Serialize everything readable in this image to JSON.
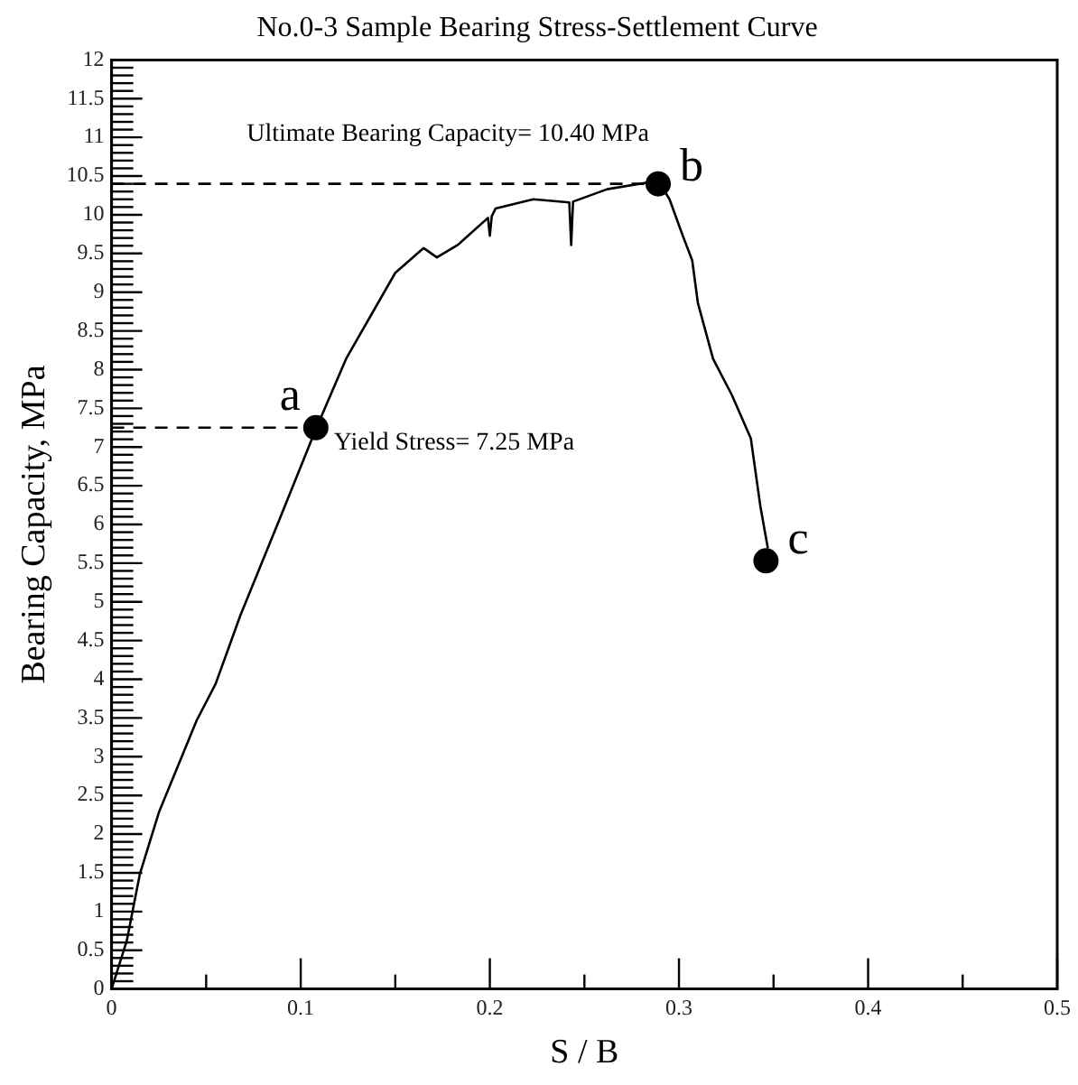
{
  "chart_data": {
    "type": "line",
    "title": "No.0-3 Sample Bearing Stress-Settlement Curve",
    "xlabel": "S / B",
    "ylabel": "Bearing Capacity, MPa",
    "xlim": [
      0,
      0.5
    ],
    "ylim": [
      0,
      12
    ],
    "xticks": [
      0,
      {
        "value": 0.05,
        "label": null
      },
      0.1,
      {
        "value": 0.15,
        "label": null
      },
      0.2,
      {
        "value": 0.25,
        "label": null
      },
      0.3,
      {
        "value": 0.35,
        "label": null
      },
      0.4,
      {
        "value": 0.45,
        "label": null
      },
      0.5
    ],
    "yticks": [
      0,
      {
        "value": 0.1,
        "label": null
      },
      {
        "value": 0.2,
        "label": null
      },
      {
        "value": 0.3,
        "label": null
      },
      {
        "value": 0.4,
        "label": null
      },
      0.5,
      {
        "value": 0.6,
        "label": null
      },
      {
        "value": 0.7,
        "label": null
      },
      {
        "value": 0.8,
        "label": null
      },
      {
        "value": 0.9,
        "label": null
      },
      1,
      {
        "value": 1.1,
        "label": null
      },
      {
        "value": 1.2,
        "label": null
      },
      {
        "value": 1.3,
        "label": null
      },
      {
        "value": 1.4,
        "label": null
      },
      1.5,
      {
        "value": 1.6,
        "label": null
      },
      {
        "value": 1.7,
        "label": null
      },
      {
        "value": 1.8,
        "label": null
      },
      {
        "value": 1.9,
        "label": null
      },
      2,
      {
        "value": 2.1,
        "label": null
      },
      {
        "value": 2.2,
        "label": null
      },
      {
        "value": 2.3,
        "label": null
      },
      {
        "value": 2.4,
        "label": null
      },
      2.5,
      {
        "value": 2.6,
        "label": null
      },
      {
        "value": 2.7,
        "label": null
      },
      {
        "value": 2.8,
        "label": null
      },
      {
        "value": 2.9,
        "label": null
      },
      3,
      {
        "value": 3.1,
        "label": null
      },
      {
        "value": 3.2,
        "label": null
      },
      {
        "value": 3.3,
        "label": null
      },
      {
        "value": 3.4,
        "label": null
      },
      3.5,
      {
        "value": 3.6,
        "label": null
      },
      {
        "value": 3.7,
        "label": null
      },
      {
        "value": 3.8,
        "label": null
      },
      {
        "value": 3.9,
        "label": null
      },
      4,
      {
        "value": 4.1,
        "label": null
      },
      {
        "value": 4.2,
        "label": null
      },
      {
        "value": 4.3,
        "label": null
      },
      {
        "value": 4.4,
        "label": null
      },
      4.5,
      {
        "value": 4.6,
        "label": null
      },
      {
        "value": 4.7,
        "label": null
      },
      {
        "value": 4.8,
        "label": null
      },
      {
        "value": 4.9,
        "label": null
      },
      5,
      {
        "value": 5.1,
        "label": null
      },
      {
        "value": 5.2,
        "label": null
      },
      {
        "value": 5.3,
        "label": null
      },
      {
        "value": 5.4,
        "label": null
      },
      5.5,
      {
        "value": 5.6,
        "label": null
      },
      {
        "value": 5.7,
        "label": null
      },
      {
        "value": 5.8,
        "label": null
      },
      {
        "value": 5.9,
        "label": null
      },
      6,
      {
        "value": 6.1,
        "label": null
      },
      {
        "value": 6.2,
        "label": null
      },
      {
        "value": 6.3,
        "label": null
      },
      {
        "value": 6.4,
        "label": null
      },
      6.5,
      {
        "value": 6.6,
        "label": null
      },
      {
        "value": 6.7,
        "label": null
      },
      {
        "value": 6.8,
        "label": null
      },
      {
        "value": 6.9,
        "label": null
      },
      7,
      {
        "value": 7.1,
        "label": null
      },
      {
        "value": 7.2,
        "label": null
      },
      {
        "value": 7.3,
        "label": null
      },
      {
        "value": 7.4,
        "label": null
      },
      7.5,
      {
        "value": 7.6,
        "label": null
      },
      {
        "value": 7.7,
        "label": null
      },
      {
        "value": 7.8,
        "label": null
      },
      {
        "value": 7.9,
        "label": null
      },
      8,
      {
        "value": 8.1,
        "label": null
      },
      {
        "value": 8.2,
        "label": null
      },
      {
        "value": 8.3,
        "label": null
      },
      {
        "value": 8.4,
        "label": null
      },
      8.5,
      {
        "value": 8.6,
        "label": null
      },
      {
        "value": 8.7,
        "label": null
      },
      {
        "value": 8.8,
        "label": null
      },
      {
        "value": 8.9,
        "label": null
      },
      9,
      {
        "value": 9.1,
        "label": null
      },
      {
        "value": 9.2,
        "label": null
      },
      {
        "value": 9.3,
        "label": null
      },
      {
        "value": 9.4,
        "label": null
      },
      9.5,
      {
        "value": 9.6,
        "label": null
      },
      {
        "value": 9.7,
        "label": null
      },
      {
        "value": 9.8,
        "label": null
      },
      {
        "value": 9.9,
        "label": null
      },
      10,
      {
        "value": 10.1,
        "label": null
      },
      {
        "value": 10.2,
        "label": null
      },
      {
        "value": 10.3,
        "label": null
      },
      {
        "value": 10.4,
        "label": null
      },
      10.5,
      {
        "value": 10.6,
        "label": null
      },
      {
        "value": 10.7,
        "label": null
      },
      {
        "value": 10.8,
        "label": null
      },
      {
        "value": 10.9,
        "label": null
      },
      11,
      {
        "value": 11.1,
        "label": null
      },
      {
        "value": 11.2,
        "label": null
      },
      {
        "value": 11.3,
        "label": null
      },
      {
        "value": 11.4,
        "label": null
      },
      11.5,
      {
        "value": 11.6,
        "label": null
      },
      {
        "value": 11.7,
        "label": null
      },
      {
        "value": 11.8,
        "label": null
      },
      {
        "value": 11.9,
        "label": null
      },
      12
    ],
    "grid": false,
    "legend": false,
    "series": [
      {
        "color": "#000000",
        "marker": "none",
        "line_style": "solid",
        "x": [
          0,
          0.008,
          0.015,
          0.025,
          0.045,
          0.055,
          0.068,
          0.089,
          0.108,
          0.124,
          0.15,
          0.165,
          0.172,
          0.183,
          0.199,
          0.2,
          0.201,
          0.203,
          0.223,
          0.242,
          0.243,
          0.244,
          0.262,
          0.289,
          0.295,
          0.302,
          0.307,
          0.31,
          0.318,
          0.328,
          0.338,
          0.343,
          0.347
        ],
        "values": [
          0,
          0.62,
          1.49,
          2.28,
          3.47,
          3.94,
          4.82,
          6.08,
          7.23,
          8.14,
          9.25,
          9.57,
          9.45,
          9.61,
          9.96,
          9.73,
          9.98,
          10.08,
          10.2,
          10.16,
          9.61,
          10.17,
          10.33,
          10.44,
          10.2,
          9.73,
          9.41,
          8.86,
          8.14,
          7.67,
          7.11,
          6.24,
          5.69
        ]
      },
      {
        "type": "line",
        "color": "#000000",
        "marker": "none",
        "line_style": "dashed",
        "x": [
          0,
          0.108
        ],
        "values": [
          7.25,
          7.25
        ]
      },
      {
        "type": "line",
        "color": "#000000",
        "marker": "none",
        "line_style": "dashed",
        "x": [
          0,
          0.289
        ],
        "values": [
          10.4,
          10.4
        ]
      },
      {
        "type": "scatter",
        "color": "#000000",
        "marker": "circle",
        "x": [
          0.108,
          0.289,
          0.346
        ],
        "values": [
          7.25,
          10.4,
          5.53
        ]
      }
    ],
    "annotations": [
      {
        "text": "a",
        "x": 0.108,
        "y": 7.25
      },
      {
        "text": "b",
        "x": 0.289,
        "y": 10.4
      },
      {
        "text": "c",
        "x": 0.346,
        "y": 5.53
      },
      {
        "text": "Yield Stress= 7.25 MPa",
        "x": 0.108,
        "y": 7.25
      },
      {
        "text": "Ultimate Bearing Capacity= 10.40 MPa",
        "x": 0.289,
        "y": 10.4
      }
    ]
  }
}
